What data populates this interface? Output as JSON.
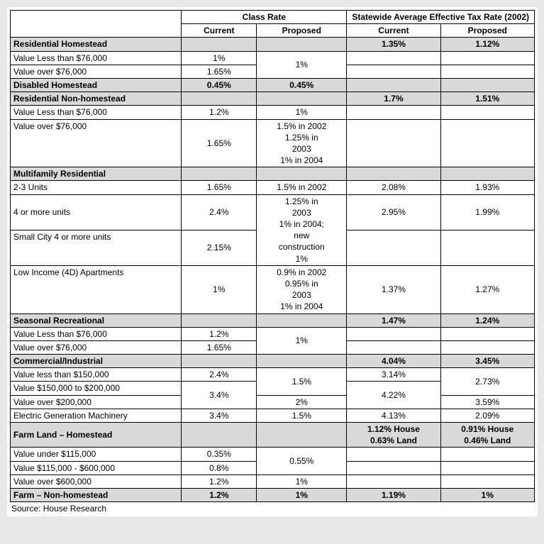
{
  "headers": {
    "classRate": "Class Rate",
    "effRate": "Statewide Average Effective Tax Rate (2002)",
    "current": "Current",
    "proposed": "Proposed"
  },
  "source": "Source: House Research",
  "cats": {
    "resHome": "Residential Homestead",
    "disHome": "Disabled Homestead",
    "resNon": "Residential Non-homestead",
    "multi": "Multifamily Residential",
    "seasonal": "Seasonal Recreational",
    "comm": "Commercial/Industrial",
    "farmHome": "Farm Land – Homestead",
    "farmNon": "Farm – Non-homestead"
  },
  "rows": {
    "resHome": {
      "effCur": "1.35%",
      "effProp": "1.12%"
    },
    "resHomeLess76": {
      "lbl": "Value Less than $76,000",
      "cur": "1%",
      "propMerged": "1%"
    },
    "resHomeOver76": {
      "lbl": "Value over $76,000",
      "cur": "1.65%"
    },
    "disHome": {
      "cur": "0.45%",
      "prop": "0.45%"
    },
    "resNon": {
      "effCur": "1.7%",
      "effProp": "1.51%"
    },
    "resNonLess76": {
      "lbl": "Value Less than $76,000",
      "cur": "1.2%",
      "prop": "1%"
    },
    "resNonOver76": {
      "lbl": "Value over $76,000",
      "cur": "1.65%",
      "prop": "1.5% in 2002 1.25% in 2003 1% in 2004"
    },
    "multi23": {
      "lbl": "2-3 Units",
      "cur": "1.65%",
      "prop": "1.5% in 2002",
      "effCur": "2.08%",
      "effProp": "1.93%"
    },
    "multi4": {
      "lbl": "4 or more units",
      "cur": "2.4%",
      "propMerged": "1.25% in 2003 1% in 2004; new construction 1%",
      "effCur": "2.95%",
      "effProp": "1.99%"
    },
    "multiSmall": {
      "lbl": "Small City 4 or more units",
      "cur": "2.15%"
    },
    "multiLow": {
      "lbl": "Low Income (4D) Apartments",
      "cur": "1%",
      "prop": "0.9% in 2002 0.95% in 2003 1% in 2004",
      "effCur": "1.37%",
      "effProp": "1.27%"
    },
    "seasonal": {
      "effCur": "1.47%",
      "effProp": "1.24%"
    },
    "seasLess76": {
      "lbl": "Value Less than $76,000",
      "cur": "1.2%",
      "propMerged": "1%"
    },
    "seasOver76": {
      "lbl": "Value over $76,000",
      "cur": "1.65%"
    },
    "comm": {
      "effCur": "4.04%",
      "effProp": "3.45%"
    },
    "commLess150": {
      "lbl": "Value less than $150,000",
      "cur": "2.4%",
      "propMerged": "1.5%",
      "effCur": "3.14%",
      "effPropMerged": "2.73%"
    },
    "comm150200": {
      "lbl": "Value $150,000 to $200,000",
      "curMerged": "3.4%",
      "effCurMerged": "4.22%"
    },
    "commOver200": {
      "lbl": "Value over $200,000",
      "prop": "2%",
      "effProp": "3.59%"
    },
    "commElec": {
      "lbl": "Electric Generation Machinery",
      "cur": "3.4%",
      "prop": "1.5%",
      "effCur": "4.13%",
      "effProp": "2.09%"
    },
    "farmHome": {
      "effCur": "1.12% House 0.63% Land",
      "effProp": "0.91% House 0.46% Land"
    },
    "farmUnder115": {
      "lbl": "Value under $115,000",
      "cur": "0.35%",
      "propMerged": "0.55%"
    },
    "farm115600": {
      "lbl": "Value $115,000 - $600,000",
      "cur": "0.8%"
    },
    "farmOver600": {
      "lbl": "Value over $600,000",
      "cur": "1.2%",
      "prop": "1%"
    },
    "farmNon": {
      "cur": "1.2%",
      "prop": "1%",
      "effCur": "1.19%",
      "effProp": "1%"
    }
  }
}
